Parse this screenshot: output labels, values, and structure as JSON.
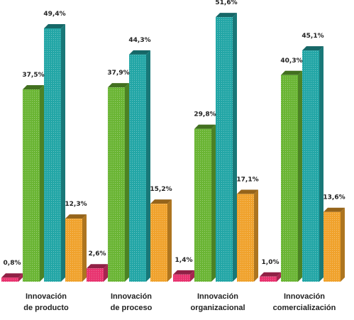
{
  "chart_data": {
    "type": "bar",
    "categories": [
      [
        "Innovación",
        "de producto"
      ],
      [
        "Innovación",
        "de proceso"
      ],
      [
        "Innovación",
        "organizacional"
      ],
      [
        "Innovación",
        "comercialización"
      ]
    ],
    "series": [
      {
        "color": "#e8336f",
        "values": [
          0.8,
          2.6,
          1.4,
          1.0
        ],
        "labels": [
          "0,8%",
          "2,6%",
          "1,4%",
          "1,0%"
        ]
      },
      {
        "color": "#6ab534",
        "values": [
          37.5,
          37.9,
          29.8,
          40.3
        ],
        "labels": [
          "37,5%",
          "37,9%",
          "29,8%",
          "40,3%"
        ]
      },
      {
        "color": "#23a6a6",
        "values": [
          49.4,
          44.3,
          51.6,
          45.1
        ],
        "labels": [
          "49,4%",
          "44,3%",
          "51,6%",
          "45,1%"
        ]
      },
      {
        "color": "#f0a22c",
        "values": [
          12.3,
          15.2,
          17.1,
          13.6
        ],
        "labels": [
          "12,3%",
          "15,2%",
          "17,1%",
          "13,6%"
        ]
      }
    ],
    "title": "",
    "xlabel": "",
    "ylabel": "",
    "ylim": [
      0,
      52
    ],
    "grid": false,
    "legend": "none"
  }
}
